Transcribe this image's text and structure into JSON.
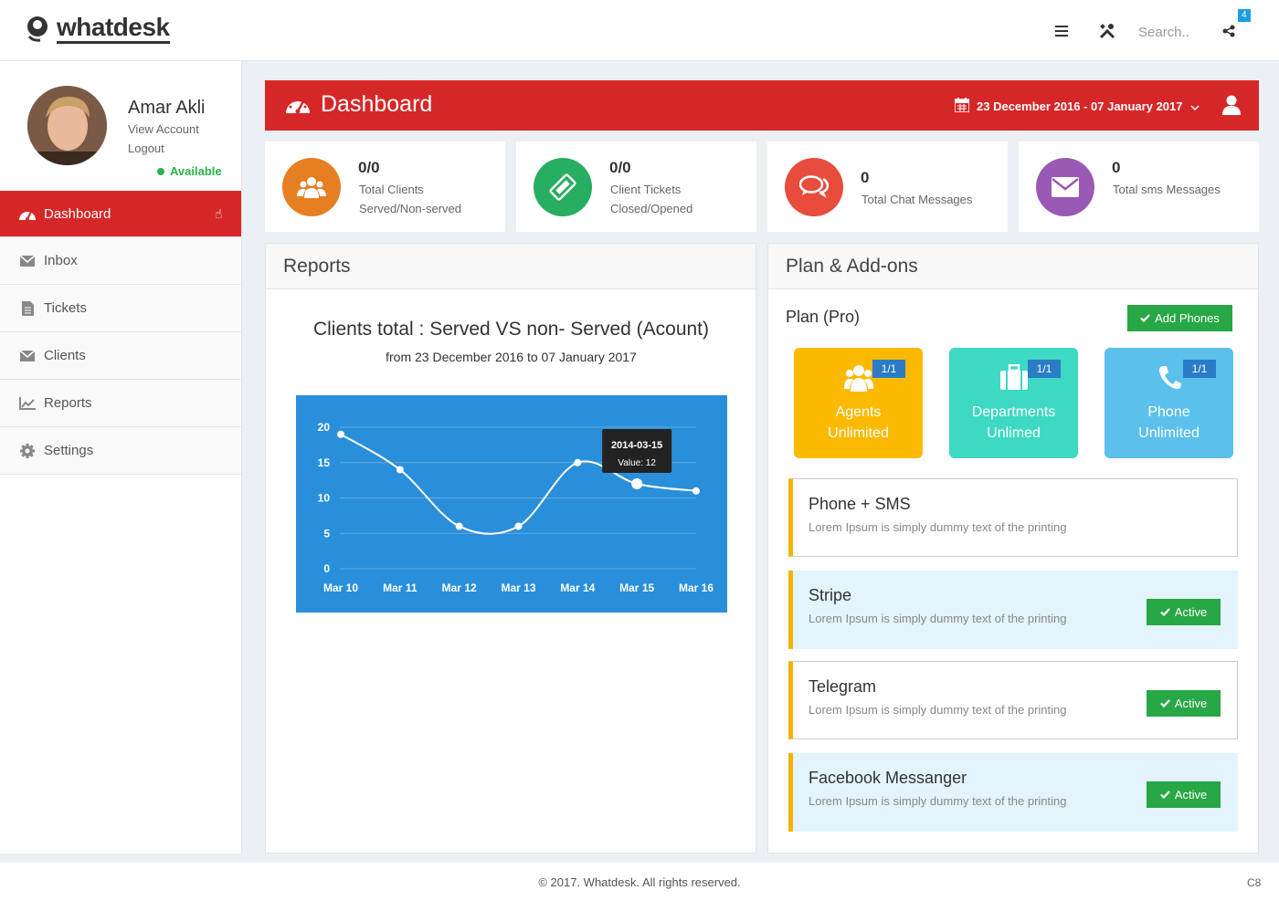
{
  "brand": {
    "name": "whatdesk"
  },
  "topbar": {
    "search_placeholder": "Search..",
    "notification_count": "4"
  },
  "user": {
    "name": "Amar Akli",
    "view_account": "View Account",
    "logout": "Logout",
    "status": "Available"
  },
  "sidebar": {
    "items": [
      {
        "label": "Dashboard"
      },
      {
        "label": "Inbox"
      },
      {
        "label": "Tickets"
      },
      {
        "label": "Clients"
      },
      {
        "label": "Reports"
      },
      {
        "label": "Settings"
      }
    ]
  },
  "header": {
    "title": "Dashboard",
    "date_range": "23 December 2016 - 07 January 2017"
  },
  "stats": [
    {
      "value": "0/0",
      "line1": "Total Clients",
      "line2": "Served/Non-served",
      "color": "#e67e22"
    },
    {
      "value": "0/0",
      "line1": "Client Tickets",
      "line2": "Closed/Opened",
      "color": "#27ae60"
    },
    {
      "value": "0",
      "line1": "Total Chat Messages",
      "line2": "",
      "color": "#e74c3c"
    },
    {
      "value": "0",
      "line1": "Total sms Messages",
      "line2": "",
      "color": "#9b59b6"
    }
  ],
  "reports": {
    "heading": "Reports",
    "chart_title": "Clients total : Served VS non- Served (Acount)",
    "chart_subtitle": "from 23 December 2016 to 07 January 2017"
  },
  "chart_data": {
    "type": "line",
    "categories": [
      "Mar 10",
      "Mar 11",
      "Mar 12",
      "Mar 13",
      "Mar 14",
      "Mar 15",
      "Mar 16"
    ],
    "values": [
      19,
      14,
      6,
      6,
      15,
      12,
      11
    ],
    "ylim": [
      0,
      20
    ],
    "yticks": [
      "0",
      "5",
      "10",
      "15",
      "20"
    ],
    "grid": true,
    "tooltip": {
      "date": "2014-03-15",
      "label": "Value: 12",
      "index": 5
    },
    "colors": {
      "background": "#2a8fda",
      "line": "#ffffff"
    }
  },
  "plan": {
    "heading": "Plan & Add-ons",
    "plan_label": "Plan (Pro)",
    "add_phones": "Add Phones",
    "tiles": [
      {
        "badge": "1/1",
        "line1": "Agents",
        "line2": "Unlimited",
        "color": "#fbb900",
        "icon": "users-icon"
      },
      {
        "badge": "1/1",
        "line1": "Departments",
        "line2": "Unlimed",
        "color": "#3ed9c2",
        "icon": "briefcase-icon"
      },
      {
        "badge": "1/1",
        "line1": "Phone",
        "line2": "Unlimited",
        "color": "#5bc0eb",
        "icon": "phone-icon"
      }
    ],
    "addons": [
      {
        "title": "Phone + SMS",
        "desc": "Lorem Ipsum is simply dummy text of the printing",
        "button": ""
      },
      {
        "title": "Stripe",
        "desc": "Lorem Ipsum is simply dummy text of the printing",
        "button": "Active"
      },
      {
        "title": "Telegram",
        "desc": "Lorem Ipsum is simply dummy text of the printing",
        "button": "Active"
      },
      {
        "title": "Facebook Messanger",
        "desc": "Lorem Ipsum is simply dummy text of the printing",
        "button": "Active"
      }
    ]
  },
  "footer": {
    "text": "© 2017. Whatdesk. All rights reserved.",
    "code": "C8"
  }
}
